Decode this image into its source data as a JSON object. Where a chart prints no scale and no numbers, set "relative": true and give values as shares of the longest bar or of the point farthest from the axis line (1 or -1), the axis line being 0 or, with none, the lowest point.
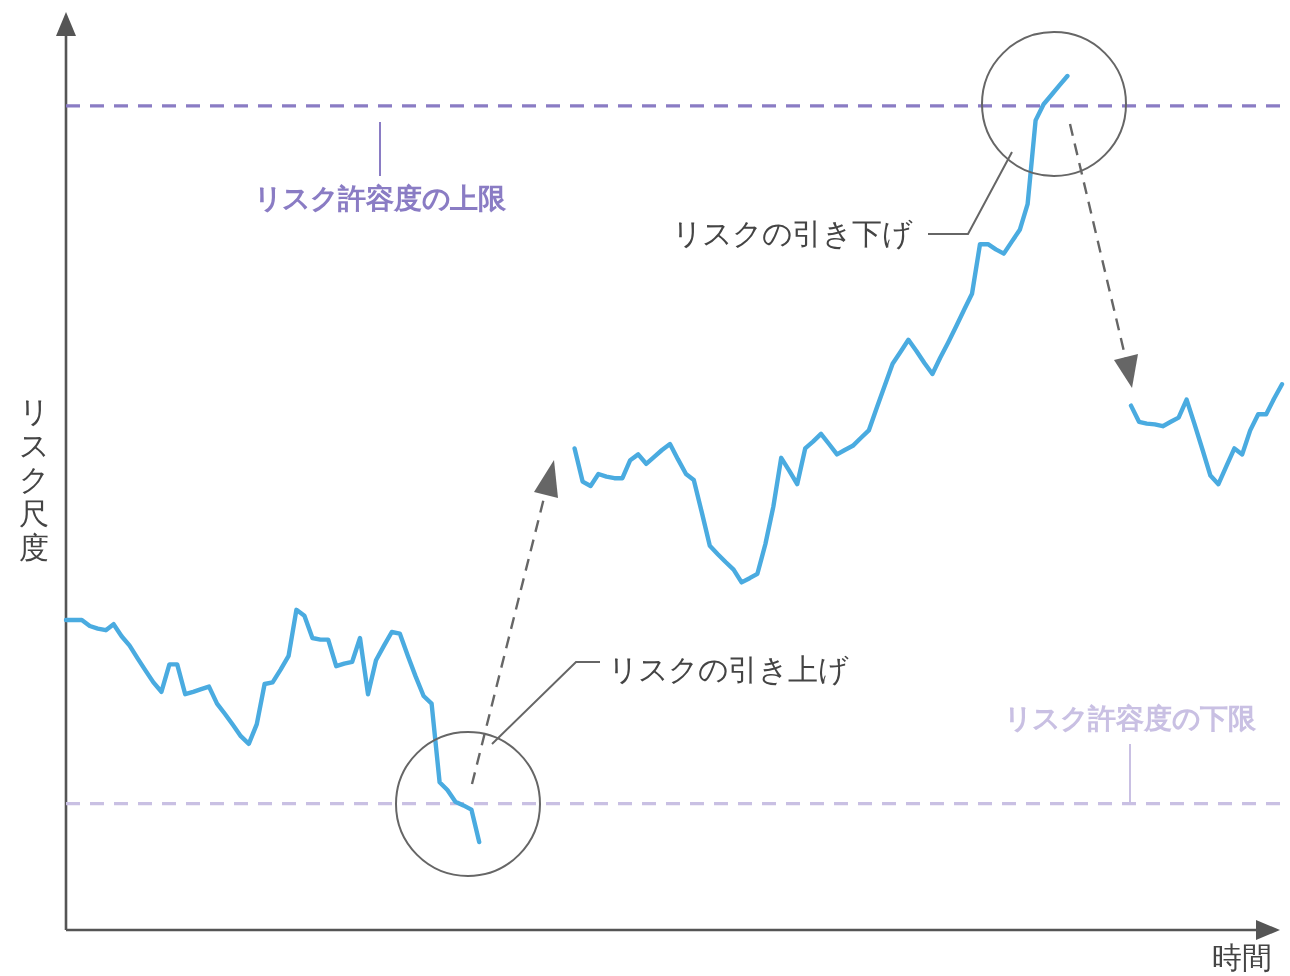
{
  "chart_data": {
    "type": "line",
    "relative": true,
    "xlabel": "時間",
    "ylabel": "リスク尺度",
    "categories": [
      null,
      null,
      null,
      null,
      null,
      null,
      null,
      null,
      null,
      null,
      null,
      null,
      null,
      null,
      null,
      null,
      null,
      null,
      null,
      null,
      null,
      null,
      null,
      null,
      null,
      null,
      null,
      null,
      null,
      null,
      null,
      null,
      null,
      null,
      null,
      null,
      null,
      null,
      null,
      null,
      null,
      null,
      null,
      null,
      null,
      null,
      null,
      null,
      null,
      null,
      null,
      null,
      null,
      null,
      null,
      null,
      null,
      null,
      null,
      null,
      null,
      null,
      null,
      null,
      null,
      null,
      null,
      null,
      null,
      null,
      null,
      null,
      null,
      null,
      null,
      null,
      null,
      null,
      null,
      null,
      null,
      null,
      null,
      null,
      null,
      null,
      null,
      null,
      null,
      null,
      null,
      null,
      null,
      null,
      null,
      null,
      null,
      null,
      null,
      null,
      null,
      null,
      null,
      null,
      null,
      null,
      null,
      null,
      null,
      null,
      null,
      null,
      null,
      null,
      null,
      null,
      null,
      null,
      null,
      null,
      null,
      null,
      null,
      null,
      null,
      null,
      null,
      null,
      null,
      null,
      null,
      null,
      null,
      null,
      null,
      null,
      null,
      null,
      null,
      null,
      null,
      null,
      null,
      null,
      null,
      null,
      null,
      null,
      null,
      null,
      null,
      null,
      null,
      null
    ],
    "series": [
      {
        "color": "#4aabe0",
        "values": [
          0.363,
          0.363,
          0.363,
          0.356,
          0.353,
          0.351,
          0.358,
          0.344,
          0.333,
          0.318,
          0.304,
          0.29,
          0.279,
          0.311,
          0.311,
          0.276,
          0.279,
          0.282,
          0.285,
          0.265,
          0.253,
          0.24,
          0.227,
          0.218,
          0.241,
          0.288,
          0.29,
          0.305,
          0.321,
          0.375,
          0.368,
          0.342,
          0.34,
          0.34,
          0.309,
          0.312,
          0.314,
          0.342,
          0.276,
          0.316,
          0.333,
          0.349,
          0.347,
          0.321,
          0.297,
          0.274,
          0.265,
          0.173,
          0.164,
          0.15,
          0.146,
          0.141,
          0.103,
          null,
          null,
          null,
          null,
          null,
          null,
          null,
          null,
          null,
          null,
          null,
          null,
          null,
          null,
          null,
          null,
          null,
          null,
          null,
          null,
          null,
          null,
          null,
          null,
          null,
          null,
          null,
          null,
          null,
          null,
          null,
          null,
          null,
          null,
          null,
          null,
          null,
          null,
          null,
          null,
          null,
          null,
          null,
          null,
          null,
          null,
          null,
          null,
          null,
          null,
          null,
          null,
          null,
          null,
          null,
          null,
          null,
          null,
          null,
          null,
          null,
          null,
          null,
          null,
          null,
          null,
          null,
          null,
          null,
          null,
          null,
          null,
          null,
          null,
          null,
          null,
          null,
          null,
          null,
          null,
          null,
          null,
          null,
          null,
          null,
          null,
          null,
          null,
          null,
          null,
          null,
          null,
          null,
          null,
          null,
          null,
          null,
          null,
          null,
          null,
          null
        ]
      },
      {
        "color": "#4aabe0",
        "values": [
          null,
          null,
          null,
          null,
          null,
          null,
          null,
          null,
          null,
          null,
          null,
          null,
          null,
          null,
          null,
          null,
          null,
          null,
          null,
          null,
          null,
          null,
          null,
          null,
          null,
          null,
          null,
          null,
          null,
          null,
          null,
          null,
          null,
          null,
          null,
          null,
          null,
          null,
          null,
          null,
          null,
          null,
          null,
          null,
          null,
          null,
          null,
          null,
          null,
          null,
          null,
          null,
          null,
          null,
          null,
          null,
          null,
          null,
          null,
          null,
          null,
          null,
          null,
          null,
          0.564,
          0.525,
          0.52,
          0.534,
          0.531,
          0.529,
          0.529,
          0.55,
          0.557,
          0.546,
          0.554,
          0.562,
          0.569,
          0.551,
          0.534,
          0.527,
          0.489,
          0.45,
          0.44,
          0.431,
          0.422,
          0.407,
          0.412,
          0.417,
          0.452,
          0.496,
          0.553,
          0.538,
          0.522,
          0.564,
          0.572,
          0.581,
          0.569,
          0.557,
          0.562,
          0.567,
          0.576,
          0.585,
          0.611,
          0.637,
          0.663,
          0.677,
          0.691,
          0.678,
          0.664,
          0.651,
          0.67,
          0.688,
          0.707,
          0.726,
          0.745,
          0.803,
          0.803,
          0.797,
          0.792,
          0.806,
          0.82,
          0.85,
          0.948,
          0.967,
          0.978,
          0.989,
          1.0,
          null,
          null,
          null,
          null,
          null,
          null,
          null,
          null,
          null,
          null,
          null,
          null,
          null,
          null,
          null,
          null,
          null,
          null,
          null,
          null,
          null,
          null,
          null,
          null,
          null,
          null,
          null
        ]
      },
      {
        "color": "#4aabe0",
        "values": [
          null,
          null,
          null,
          null,
          null,
          null,
          null,
          null,
          null,
          null,
          null,
          null,
          null,
          null,
          null,
          null,
          null,
          null,
          null,
          null,
          null,
          null,
          null,
          null,
          null,
          null,
          null,
          null,
          null,
          null,
          null,
          null,
          null,
          null,
          null,
          null,
          null,
          null,
          null,
          null,
          null,
          null,
          null,
          null,
          null,
          null,
          null,
          null,
          null,
          null,
          null,
          null,
          null,
          null,
          null,
          null,
          null,
          null,
          null,
          null,
          null,
          null,
          null,
          null,
          null,
          null,
          null,
          null,
          null,
          null,
          null,
          null,
          null,
          null,
          null,
          null,
          null,
          null,
          null,
          null,
          null,
          null,
          null,
          null,
          null,
          null,
          null,
          null,
          null,
          null,
          null,
          null,
          null,
          null,
          null,
          null,
          null,
          null,
          null,
          null,
          null,
          null,
          null,
          null,
          null,
          null,
          null,
          null,
          null,
          null,
          null,
          null,
          null,
          null,
          null,
          null,
          null,
          null,
          null,
          null,
          null,
          null,
          null,
          null,
          null,
          null,
          null,
          null,
          null,
          null,
          null,
          null,
          null,
          null,
          0.614,
          0.595,
          0.593,
          0.592,
          0.59,
          0.595,
          0.6,
          0.621,
          0.592,
          0.562,
          0.532,
          0.522,
          0.543,
          0.564,
          0.557,
          0.585,
          0.604,
          0.604,
          0.622,
          0.639
        ]
      }
    ],
    "ref_lines": [
      {
        "axis": "y",
        "value": 0.965,
        "label": "リスク許容度の上限",
        "color": "#8a7cc4",
        "line_style": "dashed"
      },
      {
        "axis": "y",
        "value": 0.148,
        "label": "リスク許容度の下限",
        "color": "#c9c0e3",
        "line_style": "dashed"
      }
    ],
    "annotations": [
      "リスクの引き上げ",
      "リスクの引き下げ"
    ]
  }
}
